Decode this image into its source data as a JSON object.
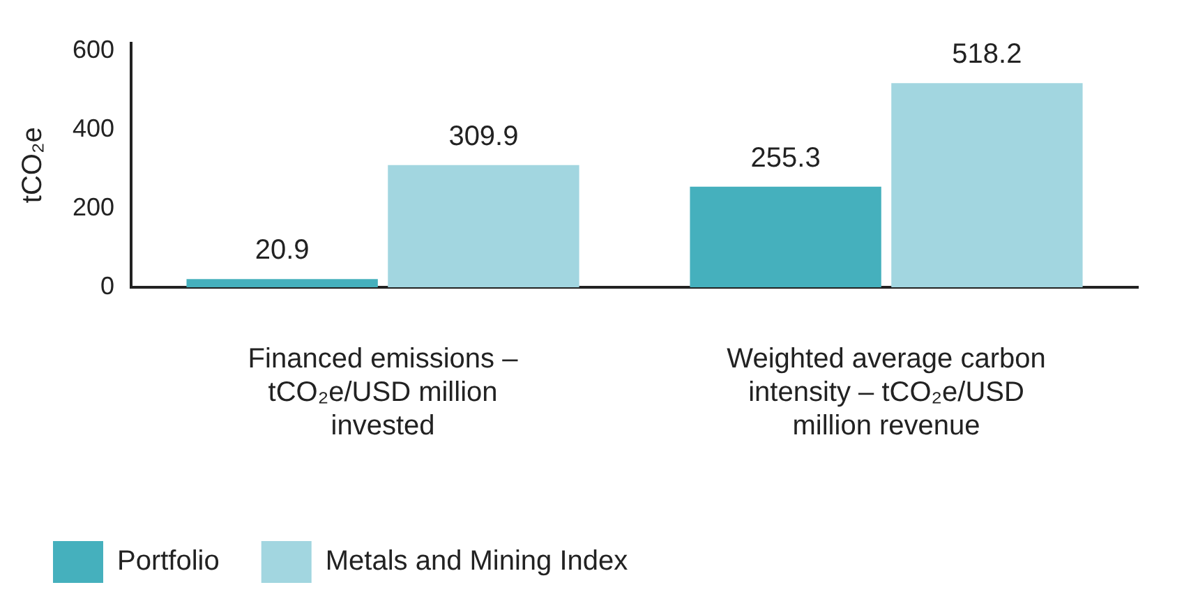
{
  "chart_data": {
    "type": "bar",
    "ylabel": "tCO₂e",
    "categories": [
      "Financed emissions – tCO₂e/USD million invested",
      "Weighted average carbon intensity – tCO₂e/USD million revenue"
    ],
    "series": [
      {
        "name": "Portfolio",
        "color": "#45b0bd",
        "values": [
          20.9,
          255.3
        ]
      },
      {
        "name": "Metals and Mining Index",
        "color": "#a2d6e0",
        "values": [
          309.9,
          518.2
        ]
      }
    ],
    "ylim": [
      0,
      620
    ],
    "yticks": [
      0,
      200,
      400,
      600
    ],
    "grid": false,
    "legend": "bottom",
    "data_labels": true
  }
}
